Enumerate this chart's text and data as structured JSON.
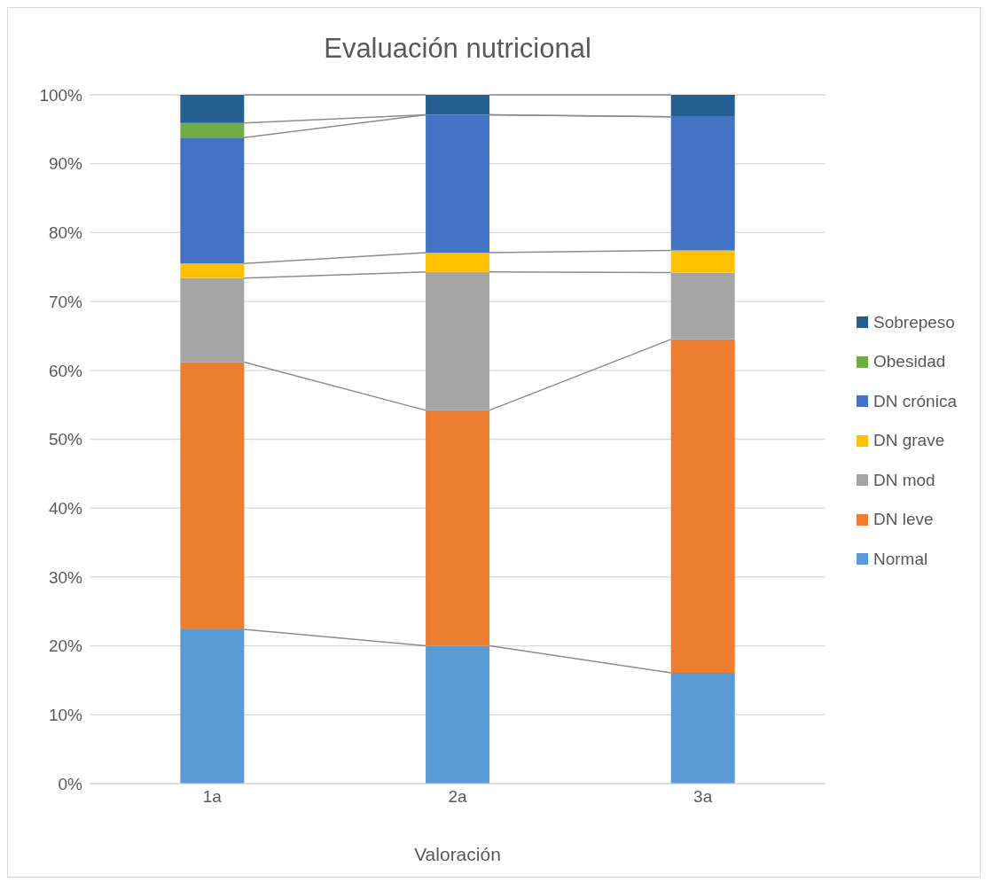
{
  "chart_data": {
    "type": "bar",
    "title": "Evaluación nutricional",
    "xlabel": "Valoración",
    "categories": [
      "1a",
      "2a",
      "3a"
    ],
    "stacked": true,
    "series": [
      {
        "name": "Normal",
        "color": "#5b9bd5",
        "values": [
          22.4,
          20.0,
          16.1
        ]
      },
      {
        "name": "DN leve",
        "color": "#ed7d31",
        "values": [
          38.8,
          34.2,
          48.4
        ]
      },
      {
        "name": "DN mod",
        "color": "#a5a5a5",
        "values": [
          12.2,
          20.1,
          9.7
        ]
      },
      {
        "name": "DN grave",
        "color": "#ffc000",
        "values": [
          2.1,
          2.8,
          3.2
        ]
      },
      {
        "name": "DN crónica",
        "color": "#4472c4",
        "values": [
          18.3,
          20.0,
          19.4
        ]
      },
      {
        "name": "Obesidad",
        "color": "#70ad47",
        "values": [
          2.1,
          0,
          0
        ]
      },
      {
        "name": "Sobrepeso",
        "color": "#255e91",
        "values": [
          4.1,
          2.9,
          3.2
        ]
      }
    ],
    "ylim": [
      0,
      100
    ],
    "yticks": [
      {
        "value": 0,
        "label": "0%"
      },
      {
        "value": 10,
        "label": "10%"
      },
      {
        "value": 20,
        "label": "20%"
      },
      {
        "value": 30,
        "label": "30%"
      },
      {
        "value": 40,
        "label": "40%"
      },
      {
        "value": 50,
        "label": "50%"
      },
      {
        "value": 60,
        "label": "60%"
      },
      {
        "value": 70,
        "label": "70%"
      },
      {
        "value": 80,
        "label": "80%"
      },
      {
        "value": 90,
        "label": "90%"
      },
      {
        "value": 100,
        "label": "100%"
      }
    ],
    "grid": "y",
    "legend": "right"
  }
}
